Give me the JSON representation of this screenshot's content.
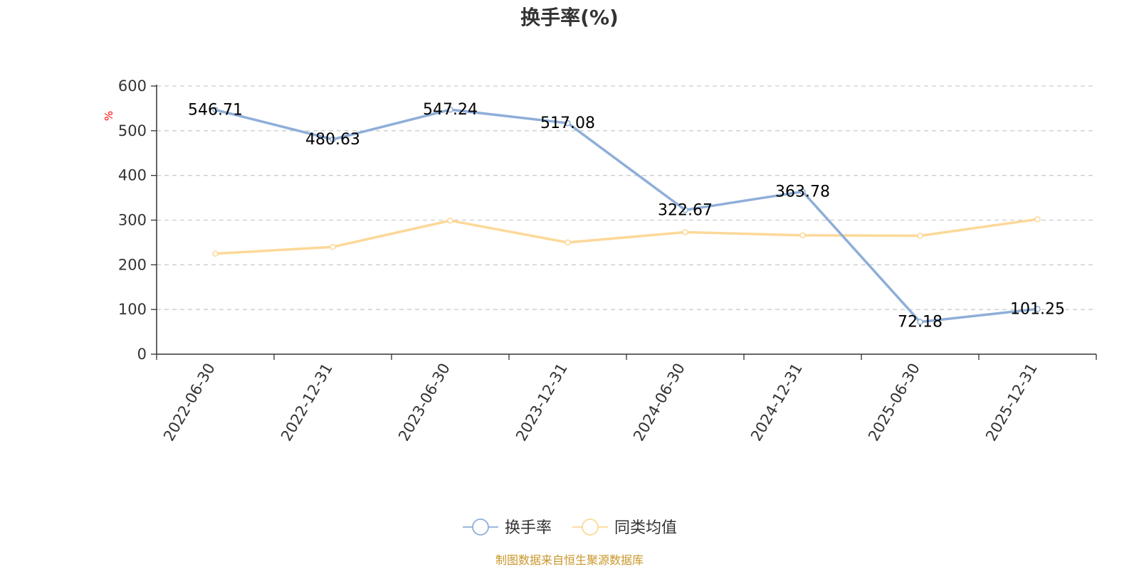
{
  "chart_data": {
    "type": "line",
    "title": "换手率(%)",
    "ylabel": "%",
    "ylim": [
      0,
      600
    ],
    "yticks": [
      0,
      100,
      200,
      300,
      400,
      500,
      600
    ],
    "categories": [
      "2022-06-30",
      "2022-12-31",
      "2023-06-30",
      "2023-12-31",
      "2024-06-30",
      "2024-12-31",
      "2025-06-30",
      "2025-12-31"
    ],
    "series": [
      {
        "name": "换手率",
        "color": "#8eaed8",
        "values": [
          546.71,
          480.63,
          547.24,
          517.08,
          322.67,
          363.78,
          72.18,
          101.25
        ],
        "labels": [
          "546.71",
          "480.63",
          "547.24",
          "517.08",
          "322.67",
          "363.78",
          "72.18",
          "101.25"
        ]
      },
      {
        "name": "同类均值",
        "color": "#fcd898",
        "values": [
          225,
          240,
          299,
          250,
          273,
          266,
          265,
          302
        ]
      }
    ],
    "grid": "dashed",
    "legend": "bottom-center"
  },
  "source": "制图数据来自恒生聚源数据库"
}
